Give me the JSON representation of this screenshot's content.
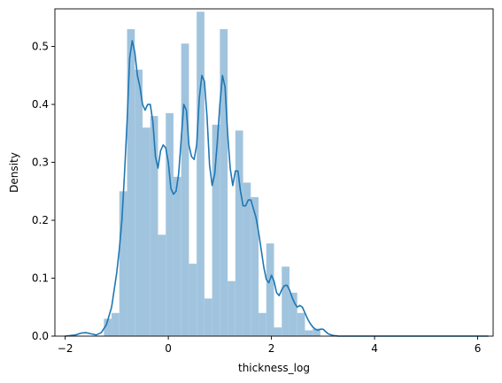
{
  "chart_data": {
    "type": "bar",
    "xlabel": "thickness_log",
    "ylabel": "Density",
    "xlim": [
      -2.2,
      6.3
    ],
    "ylim": [
      0,
      0.565
    ],
    "xticks": [
      -2,
      0,
      2,
      4,
      6
    ],
    "xtick_labels": [
      "−2",
      "0",
      "2",
      "4",
      "6"
    ],
    "yticks": [
      0.0,
      0.1,
      0.2,
      0.3,
      0.4,
      0.5
    ],
    "ytick_labels": [
      "0.0",
      "0.1",
      "0.2",
      "0.3",
      "0.4",
      "0.5"
    ],
    "grid": false,
    "bar_color": "#a1c4de",
    "line_color": "#1f77b4",
    "histogram": {
      "bin_left": [
        -1.25,
        -1.1,
        -0.95,
        -0.8,
        -0.65,
        -0.5,
        -0.35,
        -0.2,
        -0.05,
        0.1,
        0.25,
        0.4,
        0.55,
        0.7,
        0.85,
        1.0,
        1.15,
        1.3,
        1.45,
        1.6,
        1.75,
        1.9,
        2.05,
        2.2,
        2.35,
        2.5,
        2.65,
        2.8,
        2.95
      ],
      "bin_width": 0.15,
      "density": [
        0.03,
        0.04,
        0.25,
        0.53,
        0.46,
        0.36,
        0.38,
        0.175,
        0.385,
        0.275,
        0.505,
        0.125,
        0.56,
        0.065,
        0.365,
        0.53,
        0.095,
        0.355,
        0.265,
        0.24,
        0.04,
        0.16,
        0.015,
        0.12,
        0.075,
        0.04,
        0.01,
        0.013,
        0.0
      ]
    },
    "kde": {
      "x": [
        -2.0,
        -1.8,
        -1.7,
        -1.6,
        -1.5,
        -1.4,
        -1.3,
        -1.2,
        -1.1,
        -1.0,
        -0.95,
        -0.9,
        -0.85,
        -0.8,
        -0.75,
        -0.7,
        -0.65,
        -0.6,
        -0.55,
        -0.5,
        -0.45,
        -0.4,
        -0.35,
        -0.3,
        -0.25,
        -0.2,
        -0.15,
        -0.1,
        -0.05,
        0.0,
        0.05,
        0.1,
        0.15,
        0.2,
        0.25,
        0.3,
        0.35,
        0.4,
        0.45,
        0.5,
        0.55,
        0.6,
        0.65,
        0.7,
        0.75,
        0.8,
        0.85,
        0.9,
        0.95,
        1.0,
        1.05,
        1.1,
        1.15,
        1.2,
        1.25,
        1.3,
        1.35,
        1.4,
        1.45,
        1.5,
        1.55,
        1.6,
        1.65,
        1.7,
        1.75,
        1.8,
        1.85,
        1.9,
        1.95,
        2.0,
        2.05,
        2.1,
        2.15,
        2.2,
        2.25,
        2.3,
        2.35,
        2.4,
        2.45,
        2.5,
        2.55,
        2.6,
        2.65,
        2.7,
        2.75,
        2.8,
        2.85,
        2.9,
        2.95,
        3.0,
        3.05,
        3.1,
        3.2,
        3.3,
        3.5,
        4.0,
        5.0,
        6.2
      ],
      "y": [
        0.0,
        0.002,
        0.005,
        0.006,
        0.004,
        0.002,
        0.006,
        0.02,
        0.05,
        0.11,
        0.15,
        0.2,
        0.28,
        0.37,
        0.48,
        0.51,
        0.49,
        0.45,
        0.43,
        0.4,
        0.39,
        0.4,
        0.4,
        0.37,
        0.31,
        0.29,
        0.32,
        0.33,
        0.325,
        0.3,
        0.255,
        0.245,
        0.25,
        0.28,
        0.34,
        0.4,
        0.39,
        0.33,
        0.31,
        0.305,
        0.33,
        0.41,
        0.45,
        0.44,
        0.38,
        0.295,
        0.26,
        0.28,
        0.335,
        0.4,
        0.45,
        0.43,
        0.35,
        0.29,
        0.26,
        0.285,
        0.285,
        0.25,
        0.225,
        0.225,
        0.235,
        0.235,
        0.22,
        0.205,
        0.18,
        0.15,
        0.12,
        0.098,
        0.092,
        0.105,
        0.095,
        0.075,
        0.07,
        0.08,
        0.087,
        0.088,
        0.08,
        0.067,
        0.057,
        0.05,
        0.053,
        0.05,
        0.04,
        0.03,
        0.022,
        0.016,
        0.012,
        0.01,
        0.012,
        0.012,
        0.008,
        0.004,
        0.001,
        0.0,
        0.0,
        0.0,
        0.0,
        0.0
      ]
    }
  }
}
